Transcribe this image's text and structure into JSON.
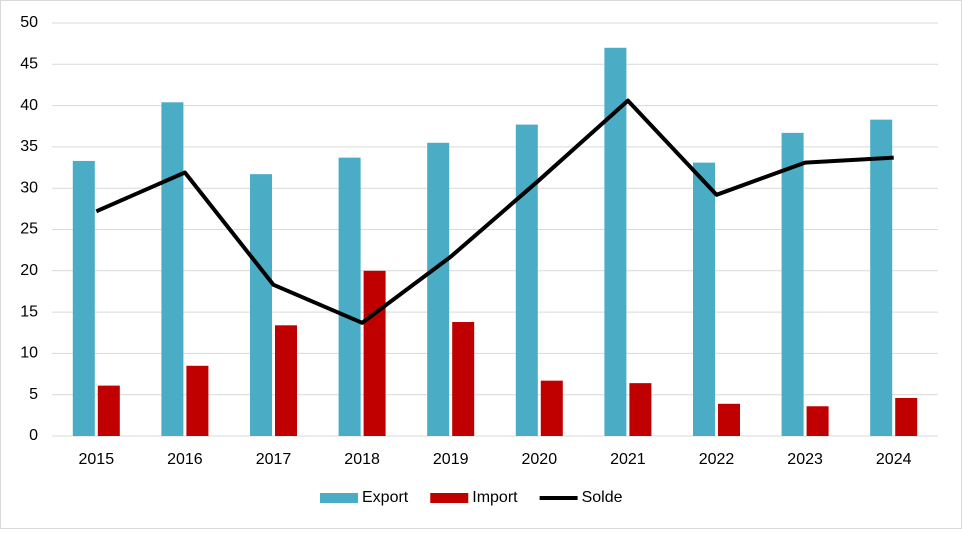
{
  "chart_data": {
    "type": "bar",
    "categories": [
      "2015",
      "2016",
      "2017",
      "2018",
      "2019",
      "2020",
      "2021",
      "2022",
      "2023",
      "2024"
    ],
    "series": [
      {
        "name": "Export",
        "color": "#4bacc6",
        "type": "bar",
        "values": [
          33.3,
          40.4,
          31.7,
          33.7,
          35.5,
          37.7,
          47.0,
          33.1,
          36.7,
          38.3
        ]
      },
      {
        "name": "Import",
        "color": "#c00000",
        "type": "bar",
        "values": [
          6.1,
          8.5,
          13.4,
          20.0,
          13.8,
          6.7,
          6.4,
          3.9,
          3.6,
          4.6
        ]
      },
      {
        "name": "Solde",
        "color": "#000000",
        "type": "line",
        "values": [
          27.2,
          31.9,
          18.3,
          13.7,
          21.7,
          31.0,
          40.6,
          29.2,
          33.1,
          33.7
        ]
      }
    ],
    "ylim": [
      0,
      50
    ],
    "yticks": [
      0,
      5,
      10,
      15,
      20,
      25,
      30,
      35,
      40,
      45,
      50
    ],
    "grid": true,
    "legend": "bottom"
  }
}
